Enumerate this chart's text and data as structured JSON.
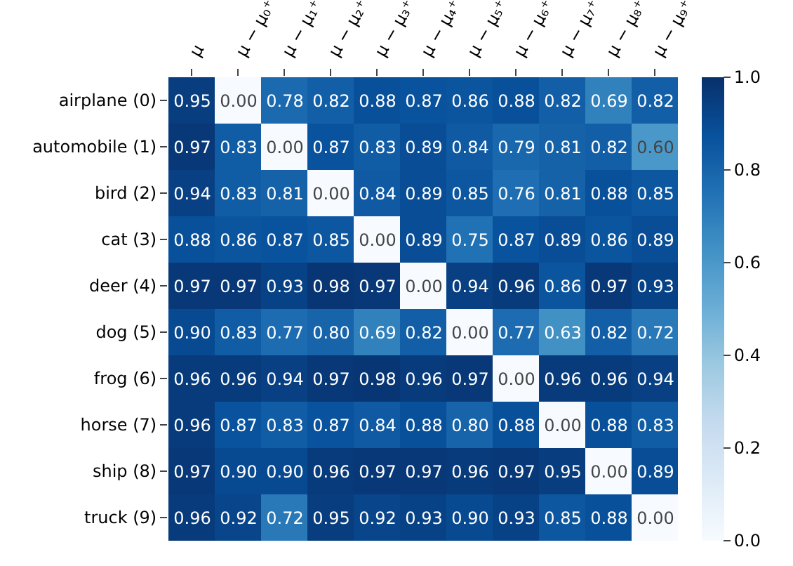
{
  "chart_data": {
    "type": "heatmap",
    "categories": [
      "μ",
      "μ − μ₀⁺",
      "μ − μ₁⁺",
      "μ − μ₂⁺",
      "μ − μ₃⁺",
      "μ − μ₄⁺",
      "μ − μ₅⁺",
      "μ − μ₆⁺",
      "μ − μ₇⁺",
      "μ − μ₈⁺",
      "μ − μ₉⁺"
    ],
    "y_categories": [
      "airplane (0)",
      "automobile (1)",
      "bird (2)",
      "cat (3)",
      "deer (4)",
      "dog (5)",
      "frog (6)",
      "horse (7)",
      "ship (8)",
      "truck (9)"
    ],
    "cells": [
      [
        0.95,
        0.0,
        0.78,
        0.82,
        0.88,
        0.87,
        0.86,
        0.88,
        0.82,
        0.69,
        0.82
      ],
      [
        0.97,
        0.83,
        0.0,
        0.87,
        0.83,
        0.89,
        0.84,
        0.79,
        0.81,
        0.82,
        0.6
      ],
      [
        0.94,
        0.83,
        0.81,
        0.0,
        0.84,
        0.89,
        0.85,
        0.76,
        0.81,
        0.88,
        0.85
      ],
      [
        0.88,
        0.86,
        0.87,
        0.85,
        0.0,
        0.89,
        0.75,
        0.87,
        0.89,
        0.86,
        0.89
      ],
      [
        0.97,
        0.97,
        0.93,
        0.98,
        0.97,
        0.0,
        0.94,
        0.96,
        0.86,
        0.97,
        0.93
      ],
      [
        0.9,
        0.83,
        0.77,
        0.8,
        0.69,
        0.82,
        0.0,
        0.77,
        0.63,
        0.82,
        0.72
      ],
      [
        0.96,
        0.96,
        0.94,
        0.97,
        0.98,
        0.96,
        0.97,
        0.0,
        0.96,
        0.96,
        0.94
      ],
      [
        0.96,
        0.87,
        0.83,
        0.87,
        0.84,
        0.88,
        0.8,
        0.88,
        0.0,
        0.88,
        0.83
      ],
      [
        0.97,
        0.9,
        0.9,
        0.96,
        0.97,
        0.97,
        0.96,
        0.97,
        0.95,
        0.0,
        0.89
      ],
      [
        0.96,
        0.92,
        0.72,
        0.95,
        0.92,
        0.93,
        0.9,
        0.93,
        0.85,
        0.88,
        0.0
      ]
    ],
    "cell_labels": [
      [
        "0.95",
        "0.00",
        "0.78",
        "0.82",
        "0.88",
        "0.87",
        "0.86",
        "0.88",
        "0.82",
        "0.69",
        "0.82"
      ],
      [
        "0.97",
        "0.83",
        "0.00",
        "0.87",
        "0.83",
        "0.89",
        "0.84",
        "0.79",
        "0.81",
        "0.82",
        "0.60"
      ],
      [
        "0.94",
        "0.83",
        "0.81",
        "0.00",
        "0.84",
        "0.89",
        "0.85",
        "0.76",
        "0.81",
        "0.88",
        "0.85"
      ],
      [
        "0.88",
        "0.86",
        "0.87",
        "0.85",
        "0.00",
        "0.89",
        "0.75",
        "0.87",
        "0.89",
        "0.86",
        "0.89"
      ],
      [
        "0.97",
        "0.97",
        "0.93",
        "0.98",
        "0.97",
        "0.00",
        "0.94",
        "0.96",
        "0.86",
        "0.97",
        "0.93"
      ],
      [
        "0.90",
        "0.83",
        "0.77",
        "0.80",
        "0.69",
        "0.82",
        "0.00",
        "0.77",
        "0.63",
        "0.82",
        "0.72"
      ],
      [
        "0.96",
        "0.96",
        "0.94",
        "0.97",
        "0.98",
        "0.96",
        "0.97",
        "0.00",
        "0.96",
        "0.96",
        "0.94"
      ],
      [
        "0.96",
        "0.87",
        "0.83",
        "0.87",
        "0.84",
        "0.88",
        "0.80",
        "0.88",
        "0.00",
        "0.88",
        "0.83"
      ],
      [
        "0.97",
        "0.90",
        "0.90",
        "0.96",
        "0.97",
        "0.97",
        "0.96",
        "0.97",
        "0.95",
        "0.00",
        "0.89"
      ],
      [
        "0.96",
        "0.92",
        "0.72",
        "0.95",
        "0.92",
        "0.93",
        "0.90",
        "0.93",
        "0.85",
        "0.88",
        "0.00"
      ]
    ],
    "clim": [
      0,
      1
    ],
    "cticks": [
      {
        "value": 0,
        "label": "0.0"
      },
      {
        "value": 0.2,
        "label": "0.2"
      },
      {
        "value": 0.4,
        "label": "0.4"
      },
      {
        "value": 0.6,
        "label": "0.6"
      },
      {
        "value": 0.8,
        "label": "0.8"
      },
      {
        "value": 1,
        "label": "1.0"
      }
    ]
  }
}
